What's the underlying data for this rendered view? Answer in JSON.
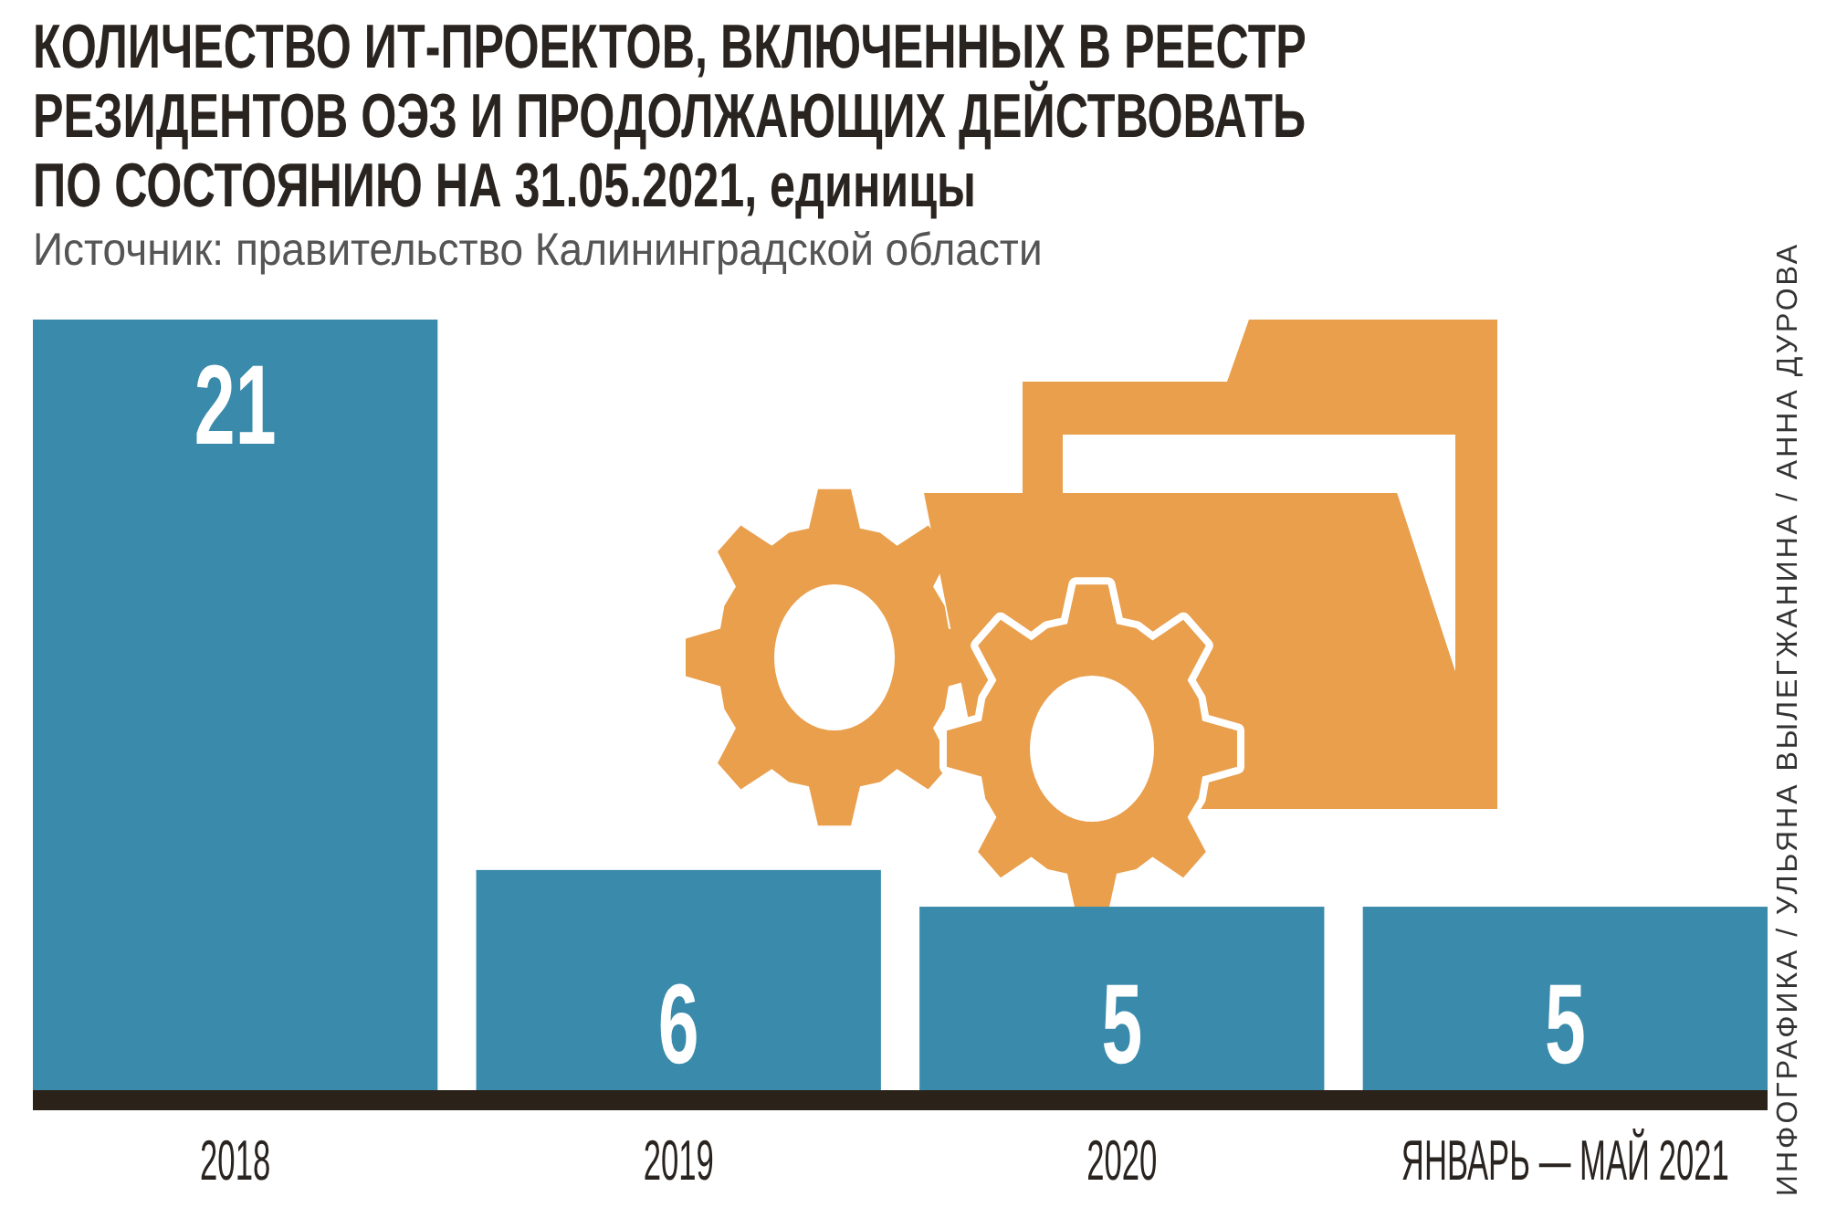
{
  "chart_data": {
    "type": "bar",
    "title": "КОЛИЧЕСТВО ИТ-ПРОЕКТОВ, ВКЛЮЧЕННЫХ В РЕЕСТР\nРЕЗИДЕНТОВ ОЭЗ И ПРОДОЛЖАЮЩИХ ДЕЙСТВОВАТЬ\nПО СОСТОЯНИЮ НА 31.05.2021, единицы",
    "annotations": [
      "Источник: правительство Калининградской области",
      "ИНФОГРАФИКА / УЛЬЯНА ВЫЛЕГЖАНИНА / АННА ДУРОВА"
    ],
    "categories": [
      "2018",
      "2019",
      "2020",
      "ЯНВАРЬ — МАЙ 2021"
    ],
    "values": [
      21,
      6,
      5,
      5
    ],
    "color": "#3a8bab",
    "data_labels": true,
    "tick_labels": "x"
  }
}
